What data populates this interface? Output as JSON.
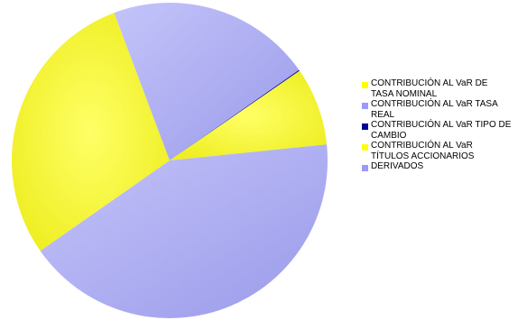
{
  "chart_data": {
    "type": "pie",
    "slices": [
      {
        "label": "CONTRIBUCIÓN AL VaR DE TASA NOMINAL",
        "value": 29.0,
        "color": "#ffff00"
      },
      {
        "label": "CONTRIBUCIÓN AL VaR TASA REAL",
        "value": 21.0,
        "color": "#9999ff"
      },
      {
        "label": "CONTRIBUCIÓN AL VaR TIPO DE CAMBIO",
        "value": 0.1,
        "color": "#000099"
      },
      {
        "label": "CONTRIBUCIÓN AL VaR TÍTULOS ACCIONARIOS",
        "value": 8.0,
        "color": "#ffff00"
      },
      {
        "label": "DERIVADOS",
        "value": 41.9,
        "color": "#9999ff"
      }
    ],
    "legend": {
      "position": "right",
      "items": [
        {
          "lines": [
            "CONTRIBUCIÓN AL VaR DE",
            "TASA NOMINAL"
          ],
          "color": "#ffff00"
        },
        {
          "lines": [
            "CONTRIBUCIÓN AL VaR TASA",
            "REAL"
          ],
          "color": "#9999ff"
        },
        {
          "lines": [
            "CONTRIBUCIÓN AL VaR TIPO DE",
            "CAMBIO"
          ],
          "color": "#000099"
        },
        {
          "lines": [
            "CONTRIBUCIÓN AL VaR",
            "TÍTULOS ACCIONARIOS"
          ],
          "color": "#ffff00"
        },
        {
          "lines": [
            "DERIVADOS"
          ],
          "color": "#9999ff"
        }
      ]
    }
  }
}
